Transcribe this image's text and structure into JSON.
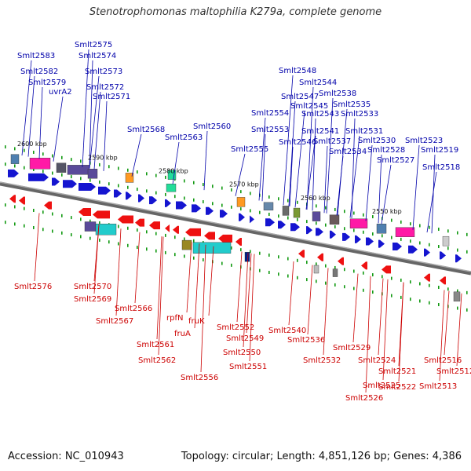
{
  "title": "Stenotrophomonas maltophilia K279a, complete genome",
  "footer": {
    "accession": "Accession: NC_010943",
    "summary": "Topology: circular; Length: 4,851,126 bp; Genes: 4,386"
  },
  "colors": {
    "forward": "#1515d0",
    "reverse": "#ee1111",
    "backbone": "#777777",
    "tick": "#119911",
    "label_top": "#0000aa",
    "label_bottom": "#cc0000"
  },
  "kbp_labels": [
    "2600 kbp",
    "2590 kbp",
    "2580 kbp",
    "2570 kbp",
    "2560 kbp",
    "2550 kbp"
  ],
  "top_labels": [
    "Smlt2583",
    "Smlt2582",
    "Smlt2579",
    "uvrA2",
    "Smlt2575",
    "Smlt2574",
    "Smlt2573",
    "Smlt2572",
    "Smlt2571",
    "Smlt2568",
    "Smlt2563",
    "Smlt2560",
    "Smlt2555",
    "Smlt2554",
    "Smlt2553",
    "Smlt2548",
    "Smlt2547",
    "Smlt2546",
    "Smlt2545",
    "Smlt2544",
    "Smlt2543",
    "Smlt2541",
    "Smlt2538",
    "Smlt2537",
    "Smlt2535",
    "Smlt2534",
    "Smlt2533",
    "Smlt2531",
    "Smlt2530",
    "Smlt2528",
    "Smlt2527",
    "Smlt2523",
    "Smlt2519",
    "Smlt2518"
  ],
  "bottom_labels": [
    "Smlt2576",
    "Smlt2570",
    "Smlt2569",
    "Smlt2567",
    "Smlt2566",
    "Smlt2561",
    "Smlt2562",
    "rpfN",
    "fruA",
    "fruK",
    "Smlt2556",
    "Smlt2552",
    "Smlt2549",
    "Smlt2550",
    "Smlt2551",
    "Smlt2540",
    "Smlt2536",
    "Smlt2532",
    "Smlt2529",
    "Smlt2524",
    "Smlt2525",
    "Smlt2526",
    "Smlt2521",
    "Smlt2522",
    "Smlt2516",
    "Smlt2512",
    "Smlt2513"
  ]
}
